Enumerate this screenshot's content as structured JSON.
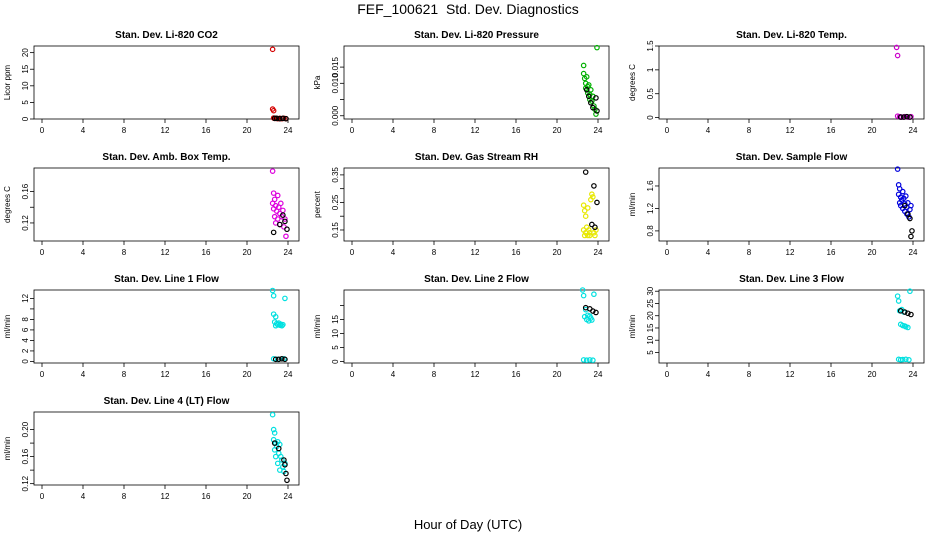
{
  "page": {
    "title": "FEF_100621  Std. Dev. Diagnostics",
    "xlabel": "Hour of Day (UTC)"
  },
  "chart_data": [
    {
      "type": "scatter",
      "title": "Stan. Dev. Li-820 CO2",
      "ylabel": "Licor ppm",
      "xlim": [
        0,
        24
      ],
      "ylim": [
        0,
        22
      ],
      "xticks": [
        0,
        4,
        8,
        12,
        16,
        20,
        24
      ],
      "yticks": [
        0,
        5,
        10,
        15,
        20
      ],
      "series": [
        {
          "color": "#d40000",
          "x": [
            22.5,
            22.5,
            22.6,
            22.6,
            22.7,
            22.8,
            23.0,
            23.2,
            23.4,
            23.6,
            23.8
          ],
          "y": [
            21.0,
            3.0,
            2.5,
            0.3,
            0.2,
            0.2,
            0.1,
            0.2,
            0.1,
            0.2,
            0.1
          ]
        },
        {
          "color": "#000000",
          "x": [
            22.7,
            22.9,
            23.2,
            23.5,
            23.8
          ],
          "y": [
            0.2,
            0.2,
            0.1,
            0.2,
            0.1
          ]
        }
      ]
    },
    {
      "type": "scatter",
      "title": "Stan. Dev. Li-820 Pressure",
      "ylabel": "kPa",
      "xlim": [
        0,
        24
      ],
      "ylim": [
        -0.001,
        0.0215
      ],
      "xticks": [
        0,
        4,
        8,
        12,
        16,
        20,
        24
      ],
      "yticks": [
        0.0,
        0.005,
        0.01,
        0.015
      ],
      "ytick_labels": [
        "0.000",
        "",
        "0.010",
        "0.015"
      ],
      "series": [
        {
          "color": "#00b000",
          "x": [
            22.6,
            22.6,
            22.7,
            22.8,
            22.8,
            22.9,
            23.0,
            23.0,
            23.1,
            23.2,
            23.2,
            23.3,
            23.4,
            23.5,
            23.6,
            23.7,
            23.8,
            23.9
          ],
          "y": [
            0.0155,
            0.013,
            0.0115,
            0.01,
            0.0085,
            0.012,
            0.009,
            0.007,
            0.0095,
            0.0065,
            0.005,
            0.008,
            0.0045,
            0.006,
            0.003,
            0.002,
            0.0005,
            0.021
          ]
        },
        {
          "color": "#000000",
          "x": [
            22.9,
            23.1,
            23.3,
            23.5,
            23.8,
            23.9
          ],
          "y": [
            0.008,
            0.006,
            0.004,
            0.0025,
            0.0055,
            0.0015
          ]
        }
      ]
    },
    {
      "type": "scatter",
      "title": "Stan. Dev. Li-820 Temp.",
      "ylabel": "degrees C",
      "xlim": [
        0,
        24
      ],
      "ylim": [
        -0.03,
        1.5
      ],
      "xticks": [
        0,
        4,
        8,
        12,
        16,
        20,
        24
      ],
      "yticks": [
        0.0,
        0.5,
        1.0,
        1.5
      ],
      "series": [
        {
          "color": "#cc00cc",
          "x": [
            22.4,
            22.5,
            22.5,
            22.7,
            22.9,
            23.2,
            23.5,
            23.8
          ],
          "y": [
            1.47,
            1.3,
            0.03,
            0.02,
            0.01,
            0.02,
            0.01,
            0.02
          ]
        },
        {
          "color": "#000000",
          "x": [
            22.8,
            23.1,
            23.4,
            23.7
          ],
          "y": [
            0.01,
            0.01,
            0.02,
            0.01
          ]
        }
      ]
    },
    {
      "type": "scatter",
      "title": "Stan. Dev. Amb. Box Temp.",
      "ylabel": "degrees C",
      "xlim": [
        0,
        24
      ],
      "ylim": [
        0.097,
        0.19
      ],
      "xticks": [
        0,
        4,
        8,
        12,
        16,
        20,
        24
      ],
      "yticks": [
        0.12,
        0.14,
        0.16
      ],
      "ytick_labels": [
        "0.12",
        "",
        "0.16"
      ],
      "series": [
        {
          "color": "#dd00dd",
          "x": [
            22.5,
            22.5,
            22.6,
            22.6,
            22.7,
            22.7,
            22.8,
            22.8,
            22.9,
            23.0,
            23.0,
            23.1,
            23.2,
            23.2,
            23.3,
            23.4,
            23.5,
            23.6,
            23.7,
            23.8
          ],
          "y": [
            0.186,
            0.145,
            0.158,
            0.138,
            0.15,
            0.128,
            0.142,
            0.12,
            0.135,
            0.155,
            0.125,
            0.14,
            0.132,
            0.118,
            0.145,
            0.128,
            0.136,
            0.115,
            0.125,
            0.103
          ]
        },
        {
          "color": "#000000",
          "x": [
            22.6,
            23.2,
            23.5,
            23.7,
            23.9
          ],
          "y": [
            0.108,
            0.118,
            0.13,
            0.122,
            0.112
          ]
        }
      ]
    },
    {
      "type": "scatter",
      "title": "Stan. Dev. Gas Stream RH",
      "ylabel": "percent",
      "xlim": [
        0,
        24
      ],
      "ylim": [
        0.11,
        0.375
      ],
      "xticks": [
        0,
        4,
        8,
        12,
        16,
        20,
        24
      ],
      "yticks": [
        0.15,
        0.2,
        0.25,
        0.3,
        0.35
      ],
      "ytick_labels": [
        "0.15",
        "",
        "0.25",
        "",
        "0.35"
      ],
      "series": [
        {
          "color": "#e8e800",
          "x": [
            22.6,
            22.6,
            22.7,
            22.7,
            22.8,
            22.8,
            22.9,
            23.0,
            23.0,
            23.1,
            23.2,
            23.2,
            23.3,
            23.4,
            23.5,
            23.6,
            23.7,
            23.8
          ],
          "y": [
            0.24,
            0.15,
            0.22,
            0.13,
            0.2,
            0.14,
            0.16,
            0.23,
            0.13,
            0.15,
            0.14,
            0.13,
            0.26,
            0.28,
            0.27,
            0.14,
            0.13,
            0.15
          ]
        },
        {
          "color": "#000000",
          "x": [
            22.8,
            23.4,
            23.6,
            23.7,
            23.9
          ],
          "y": [
            0.36,
            0.17,
            0.31,
            0.16,
            0.25
          ]
        }
      ]
    },
    {
      "type": "scatter",
      "title": "Stan. Dev. Sample Flow",
      "ylabel": "ml/min",
      "xlim": [
        0,
        24
      ],
      "ylim": [
        0.62,
        1.92
      ],
      "xticks": [
        0,
        4,
        8,
        12,
        16,
        20,
        24
      ],
      "yticks": [
        0.8,
        1.2,
        1.6
      ],
      "series": [
        {
          "color": "#0000dd",
          "x": [
            22.5,
            22.6,
            22.6,
            22.7,
            22.7,
            22.8,
            22.8,
            22.9,
            23.0,
            23.0,
            23.1,
            23.2,
            23.2,
            23.3,
            23.4,
            23.4,
            23.5,
            23.6,
            23.7,
            23.8
          ],
          "y": [
            1.9,
            1.62,
            1.45,
            1.55,
            1.3,
            1.4,
            1.25,
            1.35,
            1.5,
            1.2,
            1.38,
            1.28,
            1.15,
            1.42,
            1.22,
            1.1,
            1.3,
            1.05,
            1.18,
            1.25
          ]
        },
        {
          "color": "#000000",
          "x": [
            23.2,
            23.5,
            23.7,
            23.8,
            23.9
          ],
          "y": [
            1.25,
            1.1,
            1.02,
            0.7,
            0.8
          ]
        }
      ]
    },
    {
      "type": "scatter",
      "title": "Stan. Dev. Line 1 Flow",
      "ylabel": "ml/min",
      "xlim": [
        0,
        24
      ],
      "ylim": [
        -0.3,
        13.6
      ],
      "xticks": [
        0,
        4,
        8,
        12,
        16,
        20,
        24
      ],
      "yticks": [
        0,
        2,
        4,
        6,
        8,
        10,
        12
      ],
      "ytick_labels": [
        "0",
        "2",
        "4",
        "6",
        "8",
        "",
        "12"
      ],
      "series": [
        {
          "color": "#00e0e0",
          "x": [
            22.5,
            22.6,
            22.6,
            22.7,
            22.8,
            22.8,
            22.9,
            23.0,
            23.1,
            23.2,
            23.3,
            23.4,
            23.5,
            23.7,
            22.6,
            23.0,
            23.6
          ],
          "y": [
            13.5,
            12.5,
            9.0,
            7.5,
            8.5,
            6.8,
            7.2,
            7.0,
            7.3,
            6.9,
            7.1,
            6.8,
            7.0,
            12.0,
            0.5,
            0.4,
            0.5
          ]
        },
        {
          "color": "#000000",
          "x": [
            22.8,
            23.1,
            23.4,
            23.7
          ],
          "y": [
            0.4,
            0.4,
            0.5,
            0.4
          ]
        }
      ]
    },
    {
      "type": "scatter",
      "title": "Stan. Dev. Line 2 Flow",
      "ylabel": "ml/min",
      "xlim": [
        0,
        24
      ],
      "ylim": [
        -0.5,
        25.5
      ],
      "xticks": [
        0,
        4,
        8,
        12,
        16,
        20,
        24
      ],
      "yticks": [
        0,
        5,
        10,
        15,
        20
      ],
      "ytick_labels": [
        "0",
        "5",
        "10",
        "15",
        ""
      ],
      "series": [
        {
          "color": "#00e0e0",
          "x": [
            22.5,
            22.6,
            22.7,
            22.8,
            22.9,
            23.0,
            23.1,
            23.2,
            23.3,
            23.4,
            23.6,
            22.6,
            22.9,
            23.2,
            23.5
          ],
          "y": [
            25.5,
            23.5,
            16.0,
            18.5,
            15.0,
            16.5,
            14.5,
            16.2,
            15.5,
            14.8,
            24.0,
            0.6,
            0.5,
            0.6,
            0.5
          ]
        },
        {
          "color": "#000000",
          "x": [
            22.8,
            23.2,
            23.5,
            23.8
          ],
          "y": [
            19.2,
            18.8,
            18.0,
            17.5
          ]
        }
      ]
    },
    {
      "type": "scatter",
      "title": "Stan. Dev. Line 3 Flow",
      "ylabel": "ml/min",
      "xlim": [
        0,
        24
      ],
      "ylim": [
        0.7,
        30.5
      ],
      "xticks": [
        0,
        4,
        8,
        12,
        16,
        20,
        24
      ],
      "yticks": [
        5,
        10,
        15,
        20,
        25,
        30
      ],
      "series": [
        {
          "color": "#00e0e0",
          "x": [
            22.5,
            22.6,
            22.7,
            22.8,
            22.9,
            23.0,
            23.1,
            23.2,
            23.3,
            23.5,
            23.7,
            22.6,
            22.8,
            23.0,
            23.3,
            23.6
          ],
          "y": [
            28.0,
            26.0,
            22.0,
            16.5,
            22.5,
            16.0,
            21.5,
            15.8,
            15.5,
            15.2,
            30.0,
            2.2,
            2.0,
            2.1,
            2.2,
            2.0
          ]
        },
        {
          "color": "#000000",
          "x": [
            22.8,
            23.2,
            23.5,
            23.8
          ],
          "y": [
            22.0,
            21.5,
            21.0,
            20.5
          ]
        }
      ]
    },
    {
      "type": "scatter",
      "title": "Stan. Dev. Line 4 (LT) Flow",
      "ylabel": "ml/min",
      "xlim": [
        0,
        24
      ],
      "ylim": [
        0.118,
        0.226
      ],
      "xticks": [
        0,
        4,
        8,
        12,
        16,
        20,
        24
      ],
      "yticks": [
        0.12,
        0.14,
        0.16,
        0.18,
        0.2
      ],
      "ytick_labels": [
        "0.12",
        "",
        "0.16",
        "",
        "0.20"
      ],
      "series": [
        {
          "color": "#00e0e0",
          "x": [
            22.5,
            22.6,
            22.6,
            22.7,
            22.7,
            22.8,
            22.8,
            22.9,
            23.0,
            23.0,
            23.1,
            23.2,
            23.2,
            23.3,
            23.4,
            23.5,
            23.6,
            23.7
          ],
          "y": [
            0.222,
            0.2,
            0.185,
            0.195,
            0.17,
            0.18,
            0.16,
            0.175,
            0.182,
            0.15,
            0.165,
            0.178,
            0.14,
            0.16,
            0.155,
            0.145,
            0.138,
            0.15
          ]
        },
        {
          "color": "#000000",
          "x": [
            22.7,
            23.1,
            23.6,
            23.7,
            23.8,
            23.9
          ],
          "y": [
            0.18,
            0.172,
            0.155,
            0.148,
            0.135,
            0.125
          ]
        }
      ]
    }
  ]
}
